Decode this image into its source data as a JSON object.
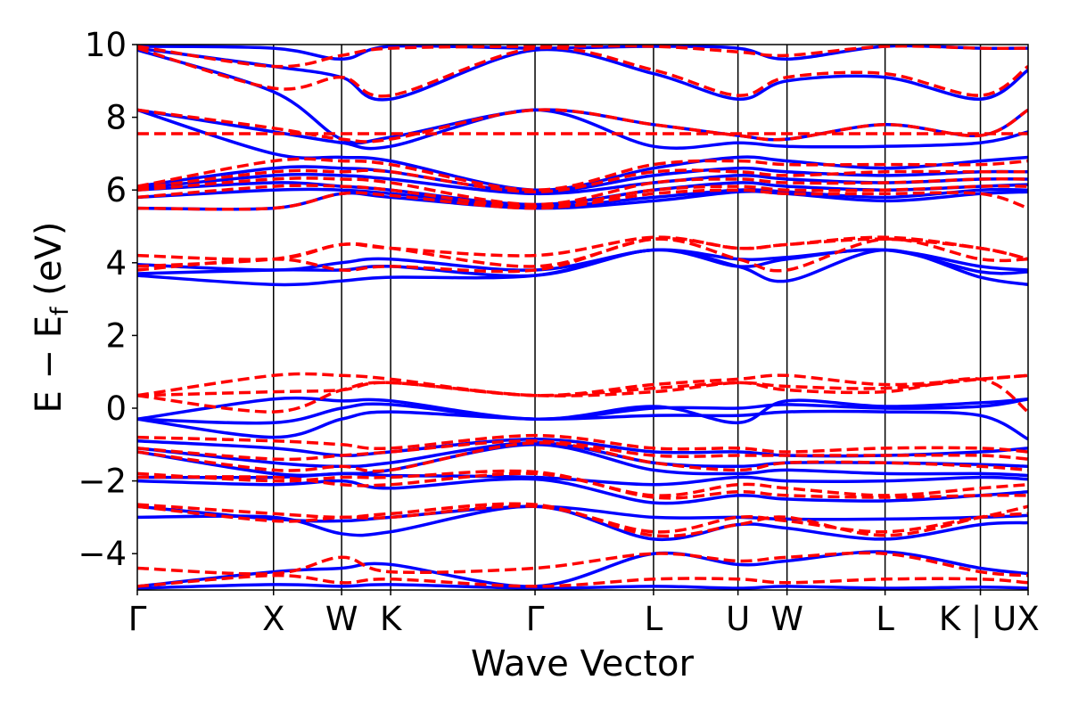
{
  "chart_data": {
    "type": "line",
    "title": "",
    "xlabel": "Wave Vector",
    "ylabel": "E − E_f (eV)",
    "ylabel_parts": {
      "main": "E − E",
      "sub": "f",
      "unit": " (eV)"
    },
    "ylim": [
      -5,
      10
    ],
    "yticks": [
      -4,
      -2,
      0,
      2,
      4,
      6,
      8,
      10
    ],
    "ytick_labels": [
      "−4",
      "−2",
      "0",
      "2",
      "4",
      "6",
      "8",
      "10"
    ],
    "xlim": [
      0,
      6.54
    ],
    "kpoints": [
      {
        "label": "Γ",
        "x": 0.0
      },
      {
        "label": "X",
        "x": 1.0
      },
      {
        "label": "W",
        "x": 1.5
      },
      {
        "label": "K",
        "x": 1.86
      },
      {
        "label": "Γ",
        "x": 2.92
      },
      {
        "label": "L",
        "x": 3.79
      },
      {
        "label": "U",
        "x": 4.41
      },
      {
        "label": "W",
        "x": 4.77
      },
      {
        "label": "L",
        "x": 5.49
      },
      {
        "label": "K | U",
        "x": 6.19
      },
      {
        "label": "X",
        "x": 6.54
      }
    ],
    "grid": false,
    "series": [
      {
        "style": "solid",
        "color": "#0000ff",
        "bands": [
          [
            -4.95,
            -4.85,
            -4.9,
            -4.85,
            -4.95,
            -4.9,
            -4.95,
            -4.9,
            -4.95,
            -4.92,
            -4.95
          ],
          [
            -4.9,
            -4.5,
            -4.4,
            -4.3,
            -4.9,
            -4.0,
            -4.3,
            -4.2,
            -3.95,
            -4.4,
            -4.55
          ],
          [
            -3.0,
            -3.0,
            -3.45,
            -3.4,
            -2.7,
            -3.6,
            -3.2,
            -3.3,
            -3.6,
            -3.2,
            -3.15
          ],
          [
            -2.7,
            -3.05,
            -3.1,
            -3.0,
            -2.7,
            -3.0,
            -3.0,
            -3.05,
            -3.05,
            -3.0,
            -2.95
          ],
          [
            -2.0,
            -2.1,
            -2.0,
            -2.2,
            -1.95,
            -2.6,
            -2.4,
            -2.5,
            -2.55,
            -2.4,
            -2.3
          ],
          [
            -1.9,
            -1.9,
            -1.8,
            -1.85,
            -1.9,
            -2.1,
            -1.9,
            -2.0,
            -2.0,
            -1.9,
            -1.95
          ],
          [
            -1.2,
            -1.8,
            -1.8,
            -1.7,
            -1.0,
            -1.7,
            -1.8,
            -1.7,
            -1.8,
            -1.8,
            -1.85
          ],
          [
            -1.1,
            -1.5,
            -1.6,
            -1.5,
            -0.95,
            -1.5,
            -1.6,
            -1.5,
            -1.5,
            -1.55,
            -1.6
          ],
          [
            -0.9,
            -1.1,
            -1.3,
            -1.2,
            -0.85,
            -1.2,
            -1.2,
            -1.3,
            -1.3,
            -1.2,
            -1.1
          ],
          [
            -0.3,
            -0.8,
            -0.3,
            -0.1,
            -0.3,
            -0.2,
            -0.2,
            -0.1,
            -0.1,
            -0.2,
            -0.85
          ],
          [
            -0.3,
            -0.4,
            0.0,
            0.1,
            -0.3,
            0.0,
            0.0,
            0.1,
            0.0,
            0.05,
            0.25
          ],
          [
            -0.3,
            0.25,
            0.2,
            0.2,
            -0.3,
            0.05,
            -0.4,
            0.2,
            0.05,
            0.15,
            0.25
          ],
          [
            3.65,
            3.4,
            3.5,
            3.6,
            3.65,
            4.35,
            3.9,
            3.5,
            4.35,
            3.6,
            3.4
          ],
          [
            3.7,
            3.8,
            3.8,
            3.9,
            3.65,
            4.35,
            3.9,
            4.1,
            4.35,
            3.75,
            3.75
          ],
          [
            3.95,
            3.8,
            4.0,
            4.1,
            3.8,
            4.35,
            4.1,
            4.15,
            4.35,
            3.9,
            3.8
          ],
          [
            5.5,
            5.5,
            5.9,
            5.8,
            5.5,
            5.7,
            5.95,
            5.9,
            5.7,
            5.9,
            5.95
          ],
          [
            5.8,
            6.0,
            6.0,
            5.9,
            5.55,
            5.8,
            6.0,
            5.95,
            5.8,
            6.0,
            6.0
          ],
          [
            6.0,
            6.2,
            6.1,
            6.0,
            5.6,
            6.0,
            6.2,
            6.1,
            6.0,
            6.1,
            6.15
          ],
          [
            6.05,
            6.4,
            6.4,
            6.3,
            5.9,
            6.2,
            6.4,
            6.3,
            6.2,
            6.3,
            6.3
          ],
          [
            6.1,
            6.6,
            6.6,
            6.5,
            5.95,
            6.4,
            6.6,
            6.5,
            6.4,
            6.5,
            6.5
          ],
          [
            8.2,
            7.0,
            6.9,
            6.8,
            6.0,
            6.6,
            6.9,
            6.8,
            6.6,
            6.8,
            6.9
          ],
          [
            8.2,
            7.6,
            7.3,
            7.2,
            8.2,
            7.2,
            7.3,
            7.2,
            7.2,
            7.3,
            7.6
          ],
          [
            9.85,
            8.7,
            7.4,
            7.45,
            8.2,
            7.8,
            7.5,
            7.4,
            7.8,
            7.5,
            8.2
          ],
          [
            9.9,
            9.4,
            9.1,
            8.5,
            9.85,
            9.2,
            8.5,
            9.0,
            9.1,
            8.5,
            9.3
          ],
          [
            9.95,
            9.9,
            9.6,
            9.95,
            9.9,
            9.95,
            9.9,
            9.6,
            9.95,
            9.9,
            9.9
          ]
        ]
      },
      {
        "style": "dashed",
        "color": "#ff0000",
        "bands": [
          [
            -4.9,
            -4.6,
            -4.8,
            -4.7,
            -4.9,
            -4.7,
            -4.7,
            -4.8,
            -4.7,
            -4.7,
            -4.8
          ],
          [
            -4.4,
            -4.55,
            -4.1,
            -4.5,
            -4.4,
            -4.0,
            -4.2,
            -4.1,
            -4.0,
            -4.5,
            -4.6
          ],
          [
            -2.65,
            -2.9,
            -3.0,
            -2.9,
            -2.65,
            -3.5,
            -3.2,
            -3.0,
            -3.5,
            -3.0,
            -2.7
          ],
          [
            -2.7,
            -3.1,
            -3.0,
            -3.0,
            -2.7,
            -3.4,
            -3.0,
            -3.1,
            -3.4,
            -3.0,
            -2.9
          ],
          [
            -1.8,
            -2.0,
            -1.9,
            -1.9,
            -1.75,
            -2.45,
            -2.3,
            -2.4,
            -2.45,
            -2.4,
            -2.4
          ],
          [
            -1.9,
            -1.9,
            -2.1,
            -2.1,
            -1.8,
            -2.4,
            -2.1,
            -2.2,
            -2.4,
            -2.2,
            -2.1
          ],
          [
            -1.2,
            -1.7,
            -1.6,
            -1.7,
            -0.95,
            -1.5,
            -1.7,
            -1.5,
            -1.5,
            -1.6,
            -1.7
          ],
          [
            -1.1,
            -1.4,
            -1.3,
            -1.2,
            -0.9,
            -1.3,
            -1.3,
            -1.3,
            -1.3,
            -1.3,
            -1.4
          ],
          [
            -0.8,
            -0.9,
            -1.0,
            -1.1,
            -0.75,
            -1.1,
            -1.1,
            -1.2,
            -1.1,
            -1.1,
            -1.2
          ],
          [
            0.35,
            -0.1,
            0.5,
            0.7,
            0.35,
            0.45,
            0.7,
            0.5,
            0.45,
            0.8,
            -0.1
          ],
          [
            0.35,
            0.45,
            0.5,
            0.7,
            0.35,
            0.55,
            0.7,
            0.6,
            0.55,
            0.8,
            0.9
          ],
          [
            0.35,
            0.9,
            0.9,
            0.8,
            0.35,
            0.65,
            0.8,
            0.9,
            0.65,
            0.8,
            0.9
          ],
          [
            3.8,
            4.1,
            3.8,
            3.9,
            3.8,
            4.65,
            4.1,
            3.8,
            4.65,
            4.1,
            4.1
          ],
          [
            3.9,
            4.1,
            4.5,
            4.4,
            3.9,
            4.65,
            4.4,
            4.5,
            4.65,
            4.4,
            4.1
          ],
          [
            4.2,
            4.1,
            4.5,
            4.4,
            4.2,
            4.7,
            4.4,
            4.5,
            4.7,
            4.4,
            4.1
          ],
          [
            5.5,
            5.5,
            5.9,
            5.85,
            5.5,
            5.9,
            6.0,
            5.9,
            5.9,
            5.9,
            5.5
          ],
          [
            5.8,
            6.1,
            6.1,
            6.0,
            5.55,
            6.0,
            6.1,
            6.0,
            6.0,
            6.1,
            6.1
          ],
          [
            6.0,
            6.3,
            6.3,
            6.2,
            5.6,
            6.2,
            6.3,
            6.2,
            6.2,
            6.3,
            6.3
          ],
          [
            6.05,
            6.5,
            6.5,
            6.5,
            5.95,
            6.5,
            6.5,
            6.4,
            6.5,
            6.5,
            6.5
          ],
          [
            6.1,
            6.8,
            6.8,
            6.7,
            6.0,
            6.7,
            6.8,
            6.7,
            6.7,
            6.7,
            6.8
          ],
          [
            7.55,
            7.55,
            7.55,
            7.55,
            7.55,
            7.55,
            7.55,
            7.55,
            7.55,
            7.55,
            7.55
          ],
          [
            8.2,
            7.7,
            7.4,
            7.4,
            8.2,
            7.8,
            7.5,
            7.4,
            7.8,
            7.5,
            8.2
          ],
          [
            9.9,
            8.8,
            9.1,
            8.6,
            9.9,
            9.3,
            8.6,
            9.1,
            9.2,
            8.6,
            9.4
          ],
          [
            9.95,
            9.4,
            9.7,
            9.9,
            9.95,
            9.95,
            9.8,
            9.7,
            9.95,
            9.9,
            9.9
          ]
        ]
      }
    ]
  }
}
